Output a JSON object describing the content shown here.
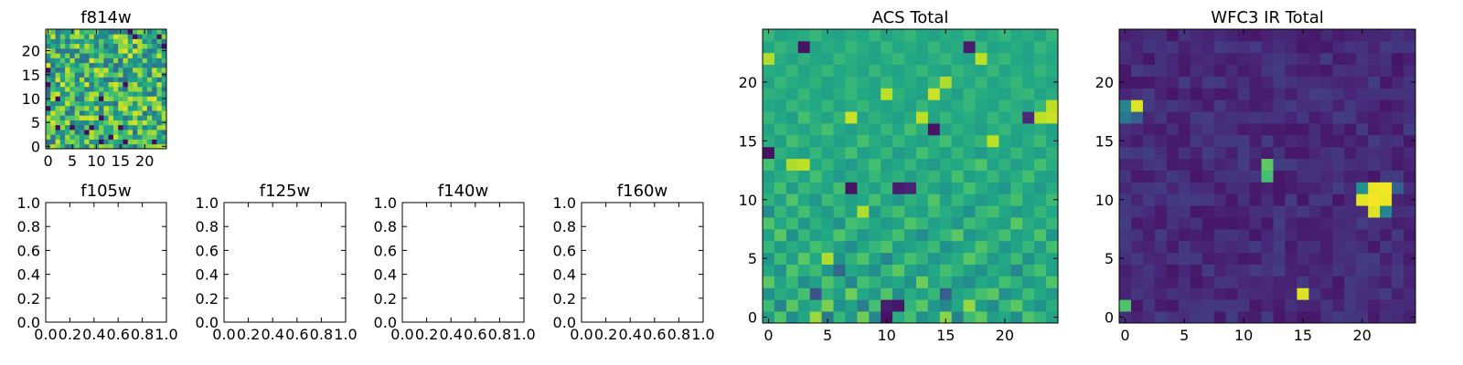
{
  "figure": {
    "background": "#ffffff",
    "colormap": "viridis"
  },
  "chart_data": [
    {
      "id": "f814w",
      "type": "heatmap",
      "title": "f814w",
      "grid_size": 25,
      "xlim": [
        -0.5,
        24.5
      ],
      "ylim": [
        -0.5,
        24.5
      ],
      "xticks": [
        0,
        5,
        10,
        15,
        20
      ],
      "yticks": [
        0,
        5,
        10,
        15,
        20
      ],
      "xtick_labels": [
        "0",
        "5",
        "10",
        "15",
        "20"
      ],
      "ytick_labels": [
        "0",
        "5",
        "10",
        "15",
        "20"
      ],
      "value_range": [
        0,
        1
      ],
      "values": [],
      "grid": false
    },
    {
      "id": "f105w",
      "type": "scatter",
      "title": "f105w",
      "xlim": [
        0,
        1
      ],
      "ylim": [
        0,
        1
      ],
      "xtick_labels": [
        "0.0",
        "0.2",
        "0.4",
        "0.6",
        "0.8",
        "1.0"
      ],
      "ytick_labels": [
        "0.0",
        "0.2",
        "0.4",
        "0.6",
        "0.8",
        "1.0"
      ],
      "series": [],
      "grid": false
    },
    {
      "id": "f125w",
      "type": "scatter",
      "title": "f125w",
      "xlim": [
        0,
        1
      ],
      "ylim": [
        0,
        1
      ],
      "xtick_labels": [
        "0.0",
        "0.2",
        "0.4",
        "0.6",
        "0.8",
        "1.0"
      ],
      "ytick_labels": [
        "0.0",
        "0.2",
        "0.4",
        "0.6",
        "0.8",
        "1.0"
      ],
      "series": [],
      "grid": false
    },
    {
      "id": "f140w",
      "type": "scatter",
      "title": "f140w",
      "xlim": [
        0,
        1
      ],
      "ylim": [
        0,
        1
      ],
      "xtick_labels": [
        "0.0",
        "0.2",
        "0.4",
        "0.6",
        "0.8",
        "1.0"
      ],
      "ytick_labels": [
        "0.0",
        "0.2",
        "0.4",
        "0.6",
        "0.8",
        "1.0"
      ],
      "series": [],
      "grid": false
    },
    {
      "id": "f160w",
      "type": "scatter",
      "title": "f160w",
      "xlim": [
        0,
        1
      ],
      "ylim": [
        0,
        1
      ],
      "xtick_labels": [
        "0.0",
        "0.2",
        "0.4",
        "0.6",
        "0.8",
        "1.0"
      ],
      "ytick_labels": [
        "0.0",
        "0.2",
        "0.4",
        "0.6",
        "0.8",
        "1.0"
      ],
      "series": [],
      "grid": false
    },
    {
      "id": "acs_total",
      "type": "heatmap",
      "title": "ACS Total",
      "grid_size": 25,
      "xlim": [
        -0.5,
        24.5
      ],
      "ylim": [
        -0.5,
        24.5
      ],
      "xticks": [
        0,
        5,
        10,
        15,
        20
      ],
      "yticks": [
        0,
        5,
        10,
        15,
        20
      ],
      "xtick_labels": [
        "0",
        "5",
        "10",
        "15",
        "20"
      ],
      "ytick_labels": [
        "0",
        "5",
        "10",
        "15",
        "20"
      ],
      "value_range": [
        0,
        1
      ],
      "values": [
        [
          0.55,
          0.72,
          0.48,
          0.6,
          0.85,
          0.4,
          0.66,
          0.52,
          0.78,
          0.45,
          0.05,
          0.62,
          0.7,
          0.5,
          0.58,
          0.82,
          0.44,
          0.68,
          0.75,
          0.55,
          0.6,
          0.48,
          0.72,
          0.65,
          0.58
        ],
        [
          0.68,
          0.45,
          0.74,
          0.56,
          0.62,
          0.8,
          0.5,
          0.58,
          0.42,
          0.7,
          0.08,
          0.06,
          0.65,
          0.74,
          0.52,
          0.46,
          0.6,
          0.84,
          0.55,
          0.48,
          0.66,
          0.74,
          0.58,
          0.5,
          0.62
        ],
        [
          0.5,
          0.62,
          0.58,
          0.7,
          0.25,
          0.64,
          0.55,
          0.78,
          0.6,
          0.52,
          0.72,
          0.48,
          0.62,
          0.56,
          0.66,
          0.3,
          0.58,
          0.62,
          0.7,
          0.74,
          0.5,
          0.56,
          0.68,
          0.6,
          0.54
        ],
        [
          0.74,
          0.58,
          0.66,
          0.48,
          0.56,
          0.72,
          0.62,
          0.46,
          0.7,
          0.64,
          0.55,
          0.6,
          0.5,
          0.78,
          0.58,
          0.64,
          0.52,
          0.48,
          0.6,
          0.56,
          0.7,
          0.64,
          0.52,
          0.58,
          0.72
        ],
        [
          0.6,
          0.5,
          0.72,
          0.62,
          0.68,
          0.52,
          0.34,
          0.6,
          0.56,
          0.48,
          0.66,
          0.74,
          0.58,
          0.52,
          0.6,
          0.7,
          0.64,
          0.56,
          0.5,
          0.62,
          0.58,
          0.46,
          0.64,
          0.7,
          0.56
        ],
        [
          0.52,
          0.68,
          0.55,
          0.74,
          0.6,
          0.88,
          0.5,
          0.64,
          0.72,
          0.58,
          0.46,
          0.6,
          0.7,
          0.64,
          0.52,
          0.58,
          0.62,
          0.74,
          0.66,
          0.54,
          0.6,
          0.68,
          0.5,
          0.62,
          0.58
        ],
        [
          0.66,
          0.54,
          0.62,
          0.58,
          0.7,
          0.64,
          0.56,
          0.48,
          0.6,
          0.66,
          0.72,
          0.54,
          0.58,
          0.62,
          0.68,
          0.5,
          0.56,
          0.6,
          0.72,
          0.64,
          0.52,
          0.58,
          0.66,
          0.54,
          0.7
        ],
        [
          0.58,
          0.74,
          0.5,
          0.66,
          0.56,
          0.6,
          0.72,
          0.64,
          0.52,
          0.58,
          0.62,
          0.7,
          0.56,
          0.48,
          0.6,
          0.66,
          0.74,
          0.52,
          0.58,
          0.62,
          0.7,
          0.56,
          0.6,
          0.72,
          0.52
        ],
        [
          0.72,
          0.6,
          0.68,
          0.52,
          0.64,
          0.58,
          0.5,
          0.7,
          0.66,
          0.6,
          0.54,
          0.58,
          0.72,
          0.66,
          0.56,
          0.6,
          0.52,
          0.68,
          0.64,
          0.58,
          0.56,
          0.74,
          0.62,
          0.58,
          0.66
        ],
        [
          0.48,
          0.66,
          0.58,
          0.7,
          0.6,
          0.54,
          0.66,
          0.58,
          0.88,
          0.52,
          0.64,
          0.7,
          0.6,
          0.56,
          0.68,
          0.62,
          0.58,
          0.5,
          0.66,
          0.7,
          0.6,
          0.54,
          0.58,
          0.66,
          0.6
        ],
        [
          0.64,
          0.56,
          0.72,
          0.6,
          0.52,
          0.68,
          0.62,
          0.56,
          0.6,
          0.7,
          0.58,
          0.52,
          0.64,
          0.6,
          0.72,
          0.56,
          0.66,
          0.6,
          0.54,
          0.58,
          0.64,
          0.7,
          0.56,
          0.6,
          0.68
        ],
        [
          0.6,
          0.7,
          0.54,
          0.66,
          0.62,
          0.58,
          0.7,
          0.05,
          0.62,
          0.56,
          0.66,
          0.08,
          0.1,
          0.64,
          0.58,
          0.52,
          0.6,
          0.7,
          0.62,
          0.56,
          0.52,
          0.66,
          0.6,
          0.54,
          0.62
        ],
        [
          0.56,
          0.62,
          0.66,
          0.58,
          0.7,
          0.6,
          0.54,
          0.62,
          0.58,
          0.66,
          0.6,
          0.64,
          0.56,
          0.62,
          0.66,
          0.58,
          0.7,
          0.56,
          0.6,
          0.66,
          0.58,
          0.62,
          0.7,
          0.58,
          0.56
        ],
        [
          0.7,
          0.58,
          0.88,
          0.9,
          0.6,
          0.66,
          0.58,
          0.54,
          0.62,
          0.7,
          0.56,
          0.6,
          0.66,
          0.58,
          0.54,
          0.62,
          0.6,
          0.66,
          0.72,
          0.58,
          0.64,
          0.56,
          0.6,
          0.7,
          0.62
        ],
        [
          0.05,
          0.64,
          0.6,
          0.56,
          0.66,
          0.58,
          0.62,
          0.7,
          0.56,
          0.6,
          0.66,
          0.54,
          0.58,
          0.7,
          0.62,
          0.56,
          0.66,
          0.6,
          0.54,
          0.62,
          0.58,
          0.66,
          0.6,
          0.56,
          0.64
        ],
        [
          0.62,
          0.56,
          0.7,
          0.64,
          0.58,
          0.62,
          0.56,
          0.6,
          0.7,
          0.62,
          0.58,
          0.66,
          0.6,
          0.56,
          0.62,
          0.7,
          0.58,
          0.62,
          0.66,
          0.9,
          0.6,
          0.56,
          0.62,
          0.68,
          0.58
        ],
        [
          0.58,
          0.66,
          0.62,
          0.58,
          0.64,
          0.7,
          0.6,
          0.56,
          0.62,
          0.58,
          0.66,
          0.6,
          0.7,
          0.62,
          0.05,
          0.58,
          0.64,
          0.6,
          0.56,
          0.62,
          0.66,
          0.58,
          0.6,
          0.62,
          0.56
        ],
        [
          0.66,
          0.6,
          0.56,
          0.7,
          0.62,
          0.58,
          0.66,
          0.92,
          0.58,
          0.64,
          0.6,
          0.56,
          0.62,
          0.9,
          0.58,
          0.66,
          0.6,
          0.62,
          0.58,
          0.66,
          0.6,
          0.64,
          0.12,
          0.9,
          0.92
        ],
        [
          0.6,
          0.58,
          0.66,
          0.62,
          0.6,
          0.66,
          0.58,
          0.62,
          0.66,
          0.6,
          0.58,
          0.62,
          0.56,
          0.66,
          0.6,
          0.58,
          0.62,
          0.66,
          0.6,
          0.58,
          0.66,
          0.62,
          0.58,
          0.66,
          0.9
        ],
        [
          0.64,
          0.62,
          0.58,
          0.66,
          0.6,
          0.56,
          0.62,
          0.66,
          0.6,
          0.58,
          0.9,
          0.64,
          0.6,
          0.58,
          0.92,
          0.62,
          0.56,
          0.66,
          0.62,
          0.6,
          0.58,
          0.64,
          0.66,
          0.58,
          0.62
        ],
        [
          0.58,
          0.66,
          0.62,
          0.6,
          0.64,
          0.58,
          0.6,
          0.66,
          0.62,
          0.58,
          0.66,
          0.6,
          0.62,
          0.58,
          0.66,
          0.88,
          0.62,
          0.6,
          0.66,
          0.58,
          0.62,
          0.66,
          0.6,
          0.62,
          0.58
        ],
        [
          0.62,
          0.6,
          0.66,
          0.58,
          0.62,
          0.66,
          0.6,
          0.62,
          0.58,
          0.66,
          0.6,
          0.58,
          0.62,
          0.66,
          0.6,
          0.58,
          0.66,
          0.62,
          0.6,
          0.66,
          0.58,
          0.62,
          0.6,
          0.66,
          0.62
        ],
        [
          0.88,
          0.62,
          0.58,
          0.64,
          0.6,
          0.58,
          0.66,
          0.62,
          0.6,
          0.58,
          0.62,
          0.66,
          0.6,
          0.58,
          0.62,
          0.66,
          0.6,
          0.58,
          0.9,
          0.62,
          0.66,
          0.6,
          0.58,
          0.62,
          0.6
        ],
        [
          0.6,
          0.66,
          0.62,
          0.05,
          0.58,
          0.62,
          0.6,
          0.66,
          0.62,
          0.58,
          0.66,
          0.6,
          0.62,
          0.58,
          0.66,
          0.6,
          0.62,
          0.08,
          0.66,
          0.58,
          0.6,
          0.62,
          0.58,
          0.66,
          0.62
        ],
        [
          0.66,
          0.58,
          0.6,
          0.62,
          0.66,
          0.6,
          0.58,
          0.62,
          0.6,
          0.66,
          0.58,
          0.62,
          0.66,
          0.6,
          0.58,
          0.62,
          0.6,
          0.66,
          0.58,
          0.62,
          0.66,
          0.6,
          0.62,
          0.58,
          0.66
        ]
      ],
      "grid": false
    },
    {
      "id": "wfc3_ir_total",
      "type": "heatmap",
      "title": "WFC3 IR Total",
      "grid_size": 25,
      "xlim": [
        -0.5,
        24.5
      ],
      "ylim": [
        -0.5,
        24.5
      ],
      "xticks": [
        0,
        5,
        10,
        15,
        20
      ],
      "yticks": [
        0,
        5,
        10,
        15,
        20
      ],
      "xtick_labels": [
        "0",
        "5",
        "10",
        "15",
        "20"
      ],
      "ytick_labels": [
        "0",
        "5",
        "10",
        "15",
        "20"
      ],
      "value_range": [
        0,
        1
      ],
      "background_value": 0.12,
      "hot_pixels": [
        {
          "x": 1,
          "y": 18,
          "value": 0.95
        },
        {
          "x": 0,
          "y": 18,
          "value": 0.45
        },
        {
          "x": 0,
          "y": 17,
          "value": 0.4
        },
        {
          "x": 1,
          "y": 17,
          "value": 0.3
        },
        {
          "x": 12,
          "y": 13,
          "value": 0.75
        },
        {
          "x": 12,
          "y": 12,
          "value": 0.7
        },
        {
          "x": 15,
          "y": 2,
          "value": 0.95
        },
        {
          "x": 0,
          "y": 1,
          "value": 0.72
        },
        {
          "x": 21,
          "y": 11,
          "value": 0.97
        },
        {
          "x": 22,
          "y": 11,
          "value": 0.98
        },
        {
          "x": 20,
          "y": 10,
          "value": 0.96
        },
        {
          "x": 21,
          "y": 10,
          "value": 0.99
        },
        {
          "x": 22,
          "y": 10,
          "value": 0.97
        },
        {
          "x": 21,
          "y": 9,
          "value": 0.95
        },
        {
          "x": 22,
          "y": 9,
          "value": 0.45
        },
        {
          "x": 20,
          "y": 11,
          "value": 0.5
        },
        {
          "x": 23,
          "y": 11,
          "value": 0.3
        }
      ],
      "grid": false
    }
  ]
}
